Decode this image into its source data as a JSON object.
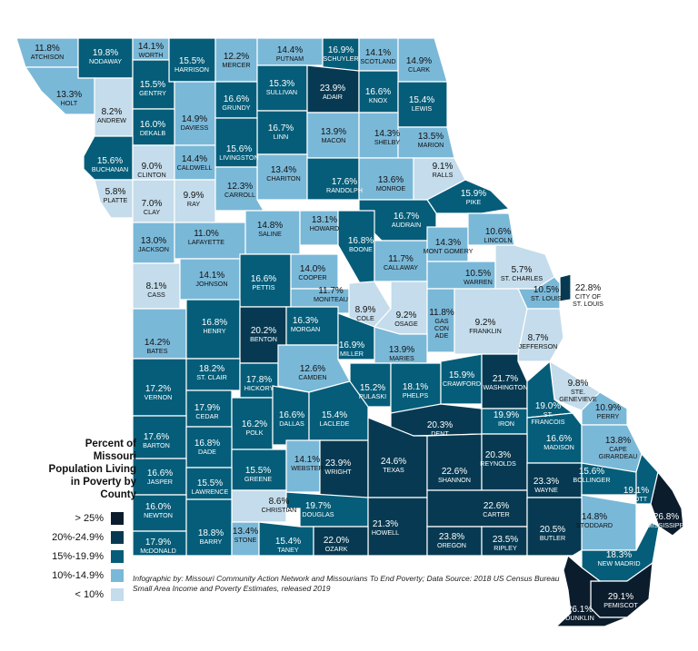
{
  "legend": {
    "title": "Percent of Missouri Population Living in Poverty by County",
    "items": [
      {
        "label": "> 25%",
        "color": "#0b1c2c"
      },
      {
        "label": "20%-24.9%",
        "color": "#073a52"
      },
      {
        "label": "15%-19.9%",
        "color": "#055d79"
      },
      {
        "label": "10%-14.9%",
        "color": "#7ab8d8"
      },
      {
        "label": "< 10%",
        "color": "#c4dceb"
      }
    ]
  },
  "credit": "Infographic by: Missouri Community Action Network and Missourians To End Poverty; Data Source: 2018 US Census Bureau Small Area Income and Poverty Estimates, released 2019",
  "counties": [
    {
      "name": "ATCHISON",
      "pct": "11.8%",
      "cls": 3
    },
    {
      "name": "NODAWAY",
      "pct": "19.8%",
      "cls": 2
    },
    {
      "name": "WORTH",
      "pct": "14.1%",
      "cls": 3
    },
    {
      "name": "HARRISON",
      "pct": "15.5%",
      "cls": 2
    },
    {
      "name": "MERCER",
      "pct": "12.2%",
      "cls": 3
    },
    {
      "name": "PUTNAM",
      "pct": "14.4%",
      "cls": 3
    },
    {
      "name": "SCHUYLER",
      "pct": "16.9%",
      "cls": 2
    },
    {
      "name": "SCOTLAND",
      "pct": "14.1%",
      "cls": 3
    },
    {
      "name": "CLARK",
      "pct": "14.9%",
      "cls": 3
    },
    {
      "name": "HOLT",
      "pct": "13.3%",
      "cls": 3
    },
    {
      "name": "ANDREW",
      "pct": "8.2%",
      "cls": 4
    },
    {
      "name": "GENTRY",
      "pct": "15.5%",
      "cls": 2
    },
    {
      "name": "DAVIESS",
      "pct": "14.9%",
      "cls": 3
    },
    {
      "name": "GRUNDY",
      "pct": "16.6%",
      "cls": 2
    },
    {
      "name": "SULLIVAN",
      "pct": "15.3%",
      "cls": 2
    },
    {
      "name": "ADAIR",
      "pct": "23.9%",
      "cls": 1
    },
    {
      "name": "KNOX",
      "pct": "16.6%",
      "cls": 2
    },
    {
      "name": "LEWIS",
      "pct": "15.4%",
      "cls": 2
    },
    {
      "name": "DEKALB",
      "pct": "16.0%",
      "cls": 2
    },
    {
      "name": "LINN",
      "pct": "16.7%",
      "cls": 2
    },
    {
      "name": "MACON",
      "pct": "13.9%",
      "cls": 3
    },
    {
      "name": "SHELBY",
      "pct": "14.3%",
      "cls": 3
    },
    {
      "name": "MARION",
      "pct": "13.5%",
      "cls": 3
    },
    {
      "name": "BUCHANAN",
      "pct": "15.6%",
      "cls": 2
    },
    {
      "name": "CLINTON",
      "pct": "9.0%",
      "cls": 4
    },
    {
      "name": "CALDWELL",
      "pct": "14.4%",
      "cls": 3
    },
    {
      "name": "LIVINGSTON",
      "pct": "15.6%",
      "cls": 2
    },
    {
      "name": "CHARITON",
      "pct": "13.4%",
      "cls": 3
    },
    {
      "name": "RANDOLPH",
      "pct": "17.6%",
      "cls": 2
    },
    {
      "name": "MONROE",
      "pct": "13.6%",
      "cls": 3
    },
    {
      "name": "RALLS",
      "pct": "9.1%",
      "cls": 4
    },
    {
      "name": "PLATTE",
      "pct": "5.8%",
      "cls": 4
    },
    {
      "name": "CLAY",
      "pct": "7.0%",
      "cls": 4
    },
    {
      "name": "RAY",
      "pct": "9.9%",
      "cls": 4
    },
    {
      "name": "CARROLL",
      "pct": "12.3%",
      "cls": 3
    },
    {
      "name": "PIKE",
      "pct": "15.9%",
      "cls": 2
    },
    {
      "name": "AUDRAIN",
      "pct": "16.7%",
      "cls": 2
    },
    {
      "name": "JACKSON",
      "pct": "13.0%",
      "cls": 3
    },
    {
      "name": "LAFAYETTE",
      "pct": "11.0%",
      "cls": 3
    },
    {
      "name": "SALINE",
      "pct": "14.8%",
      "cls": 3
    },
    {
      "name": "HOWARD",
      "pct": "13.1%",
      "cls": 3
    },
    {
      "name": "BOONE",
      "pct": "16.8%",
      "cls": 2
    },
    {
      "name": "CALLAWAY",
      "pct": "11.7%",
      "cls": 3
    },
    {
      "name": "MONT GOMERY",
      "pct": "14.3%",
      "cls": 3
    },
    {
      "name": "LINCOLN",
      "pct": "10.6%",
      "cls": 3
    },
    {
      "name": "WARREN",
      "pct": "10.5%",
      "cls": 3
    },
    {
      "name": "ST. CHARLES",
      "pct": "5.7%",
      "cls": 4
    },
    {
      "name": "CITY OF ST. LOUIS",
      "pct": "22.8%",
      "cls": 1
    },
    {
      "name": "ST. LOUIS",
      "pct": "10.5%",
      "cls": 3
    },
    {
      "name": "CASS",
      "pct": "8.1%",
      "cls": 4
    },
    {
      "name": "JOHNSON",
      "pct": "14.1%",
      "cls": 3
    },
    {
      "name": "PETTIS",
      "pct": "16.6%",
      "cls": 2
    },
    {
      "name": "COOPER",
      "pct": "14.0%",
      "cls": 3
    },
    {
      "name": "MONITEAU",
      "pct": "11.7%",
      "cls": 3
    },
    {
      "name": "COLE",
      "pct": "8.9%",
      "cls": 4
    },
    {
      "name": "OSAGE",
      "pct": "9.2%",
      "cls": 4
    },
    {
      "name": "GAS CON ADE",
      "pct": "11.8%",
      "cls": 3
    },
    {
      "name": "FRANKLIN",
      "pct": "9.2%",
      "cls": 4
    },
    {
      "name": "JEFFERSON",
      "pct": "8.7%",
      "cls": 4
    },
    {
      "name": "BATES",
      "pct": "14.2%",
      "cls": 3
    },
    {
      "name": "HENRY",
      "pct": "16.8%",
      "cls": 2
    },
    {
      "name": "BENTON",
      "pct": "20.2%",
      "cls": 1
    },
    {
      "name": "MORGAN",
      "pct": "16.3%",
      "cls": 2
    },
    {
      "name": "MILLER",
      "pct": "16.9%",
      "cls": 2
    },
    {
      "name": "MARIES",
      "pct": "13.9%",
      "cls": 3
    },
    {
      "name": "VERNON",
      "pct": "17.2%",
      "cls": 2
    },
    {
      "name": "ST. CLAIR",
      "pct": "18.2%",
      "cls": 2
    },
    {
      "name": "HICKORY",
      "pct": "17.8%",
      "cls": 2
    },
    {
      "name": "CAMDEN",
      "pct": "12.6%",
      "cls": 3
    },
    {
      "name": "PULASKI",
      "pct": "15.2%",
      "cls": 2
    },
    {
      "name": "PHELPS",
      "pct": "18.1%",
      "cls": 2
    },
    {
      "name": "CRAWFORD",
      "pct": "15.9%",
      "cls": 2
    },
    {
      "name": "WASHINGTON",
      "pct": "21.7%",
      "cls": 1
    },
    {
      "name": "STE. GENEVIEVE",
      "pct": "9.8%",
      "cls": 4
    },
    {
      "name": "ST. FRANCOIS",
      "pct": "19.0%",
      "cls": 2
    },
    {
      "name": "PERRY",
      "pct": "10.9%",
      "cls": 3
    },
    {
      "name": "CEDAR",
      "pct": "17.9%",
      "cls": 2
    },
    {
      "name": "POLK",
      "pct": "16.2%",
      "cls": 2
    },
    {
      "name": "DALLAS",
      "pct": "16.6%",
      "cls": 2
    },
    {
      "name": "LACLEDE",
      "pct": "15.4%",
      "cls": 2
    },
    {
      "name": "DENT",
      "pct": "20.3%",
      "cls": 1
    },
    {
      "name": "IRON",
      "pct": "19.9%",
      "cls": 2
    },
    {
      "name": "MADISON",
      "pct": "16.6%",
      "cls": 2
    },
    {
      "name": "CAPE GIRARDEAU",
      "pct": "13.8%",
      "cls": 3
    },
    {
      "name": "BARTON",
      "pct": "17.6%",
      "cls": 2
    },
    {
      "name": "DADE",
      "pct": "16.8%",
      "cls": 2
    },
    {
      "name": "GREENE",
      "pct": "15.5%",
      "cls": 2
    },
    {
      "name": "WEBSTER",
      "pct": "14.1%",
      "cls": 3
    },
    {
      "name": "WRIGHT",
      "pct": "23.9%",
      "cls": 1
    },
    {
      "name": "TEXAS",
      "pct": "24.6%",
      "cls": 1
    },
    {
      "name": "SHANNON",
      "pct": "22.6%",
      "cls": 1
    },
    {
      "name": "REYNOLDS",
      "pct": "20.3%",
      "cls": 1
    },
    {
      "name": "WAYNE",
      "pct": "23.3%",
      "cls": 1
    },
    {
      "name": "BOLLINGER",
      "pct": "15.6%",
      "cls": 2
    },
    {
      "name": "SCOTT",
      "pct": "19.1%",
      "cls": 2
    },
    {
      "name": "JASPER",
      "pct": "16.6%",
      "cls": 2
    },
    {
      "name": "LAWRENCE",
      "pct": "15.5%",
      "cls": 2
    },
    {
      "name": "CHRISTIAN",
      "pct": "8.6%",
      "cls": 4
    },
    {
      "name": "DOUGLAS",
      "pct": "19.7%",
      "cls": 2
    },
    {
      "name": "HOWELL",
      "pct": "21.3%",
      "cls": 1
    },
    {
      "name": "CARTER",
      "pct": "22.6%",
      "cls": 1
    },
    {
      "name": "STODDARD",
      "pct": "14.8%",
      "cls": 3
    },
    {
      "name": "MISSISSIPPI",
      "pct": "26.8%",
      "cls": 0
    },
    {
      "name": "NEWTON",
      "pct": "16.0%",
      "cls": 2
    },
    {
      "name": "BARRY",
      "pct": "18.8%",
      "cls": 2
    },
    {
      "name": "STONE",
      "pct": "13.4%",
      "cls": 3
    },
    {
      "name": "TANEY",
      "pct": "15.4%",
      "cls": 2
    },
    {
      "name": "OZARK",
      "pct": "22.0%",
      "cls": 1
    },
    {
      "name": "OREGON",
      "pct": "23.8%",
      "cls": 1
    },
    {
      "name": "RIPLEY",
      "pct": "23.5%",
      "cls": 1
    },
    {
      "name": "BUTLER",
      "pct": "20.5%",
      "cls": 1
    },
    {
      "name": "NEW MADRID",
      "pct": "18.3%",
      "cls": 2
    },
    {
      "name": "McDONALD",
      "pct": "17.9%",
      "cls": 2
    },
    {
      "name": "PEMISCOT",
      "pct": "29.1%",
      "cls": 0
    },
    {
      "name": "DUNKLIN",
      "pct": "26.1%",
      "cls": 0
    }
  ]
}
